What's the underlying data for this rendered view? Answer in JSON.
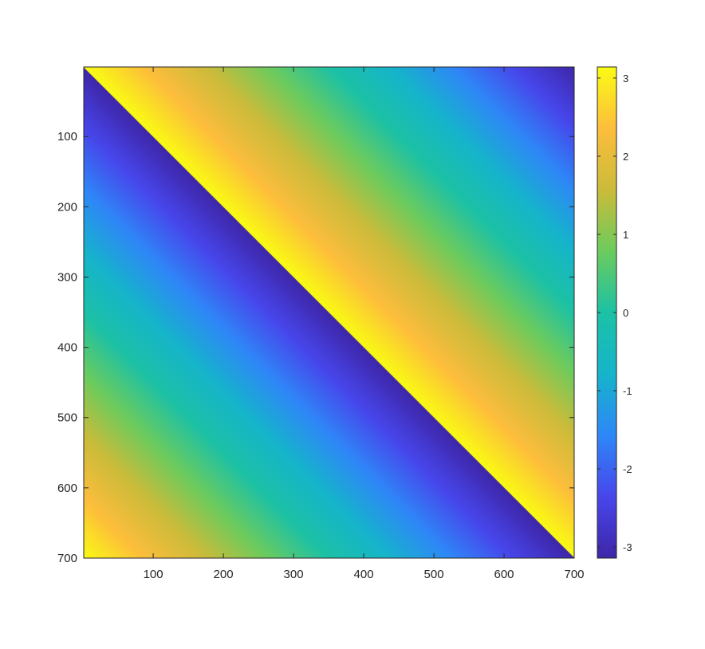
{
  "chart_data": {
    "type": "heatmap",
    "title": "",
    "xlabel": "",
    "ylabel": "",
    "x_range": [
      1,
      700
    ],
    "y_range": [
      1,
      700
    ],
    "y_direction": "reverse",
    "x_ticks": [
      100,
      200,
      300,
      400,
      500,
      600,
      700
    ],
    "x_tick_labels": [
      "100",
      "200",
      "300",
      "400",
      "500",
      "600",
      "700"
    ],
    "y_ticks": [
      100,
      200,
      300,
      400,
      500,
      600,
      700
    ],
    "y_tick_labels": [
      "100",
      "200",
      "300",
      "400",
      "500",
      "600",
      "700"
    ],
    "color_range": [
      -3.1416,
      3.1416
    ],
    "colorbar_ticks": [
      3,
      2,
      1,
      0,
      -1,
      -2,
      -3
    ],
    "colorbar_tick_labels": [
      "3",
      "2",
      "1",
      "0",
      "-1",
      "-2",
      "-3"
    ],
    "colormap": "parula",
    "colormap_stops": [
      "#3e26a8",
      "#4746eb",
      "#2e87f7",
      "#16b4cb",
      "#1cc1a5",
      "#6ccb5d",
      "#cbbb3a",
      "#fdbd3c",
      "#f9fb14"
    ],
    "grid": false,
    "legend": "colorbar-right",
    "phase_samples": [
      {
        "row": 1,
        "col": 700,
        "value": -3.14
      },
      {
        "row": 20,
        "col": 1,
        "value": 3.1
      },
      {
        "row": 350,
        "col": 1,
        "value": -0.45
      },
      {
        "row": 700,
        "col": 1,
        "value": 3.14
      },
      {
        "row": 700,
        "col": 350,
        "value": 0.45
      },
      {
        "row": 700,
        "col": 700,
        "value": -3.1
      }
    ]
  }
}
